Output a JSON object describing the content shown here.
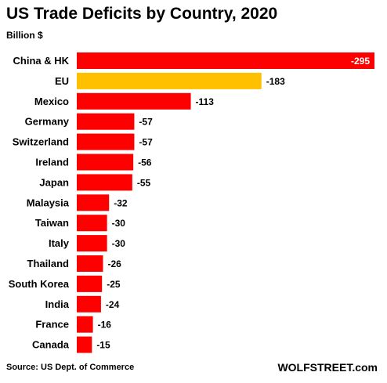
{
  "chart_data": {
    "type": "bar",
    "orientation": "horizontal",
    "title": "US Trade Deficits by Country, 2020",
    "subtitle": "Billion $",
    "categories": [
      "China & HK",
      "EU",
      "Mexico",
      "Germany",
      "Switzerland",
      "Ireland",
      "Japan",
      "Malaysia",
      "Taiwan",
      "Italy",
      "Thailand",
      "South Korea",
      "India",
      "France",
      "Canada"
    ],
    "values": [
      -295,
      -183,
      -113,
      -57,
      -57,
      -56,
      -55,
      -32,
      -30,
      -30,
      -26,
      -25,
      -24,
      -16,
      -15
    ],
    "value_labels": [
      "-295",
      "-183",
      "-113",
      "-57",
      "-57",
      "-56",
      "-55",
      "-32",
      "-30",
      "-30",
      "-26",
      "-25",
      "-24",
      "-16",
      "-15"
    ],
    "colors": [
      "#ff0000",
      "#ffc000",
      "#ff0000",
      "#ff0000",
      "#ff0000",
      "#ff0000",
      "#ff0000",
      "#ff0000",
      "#ff0000",
      "#ff0000",
      "#ff0000",
      "#ff0000",
      "#ff0000",
      "#ff0000",
      "#ff0000"
    ],
    "bar_color": "#ff0000",
    "highlight_color": "#ffc000",
    "xlim": [
      0,
      295
    ],
    "grid": false,
    "legend": "none"
  },
  "footer": {
    "source": "Source: US Dept. of Commerce",
    "brand": "WOLFSTREET.com"
  }
}
